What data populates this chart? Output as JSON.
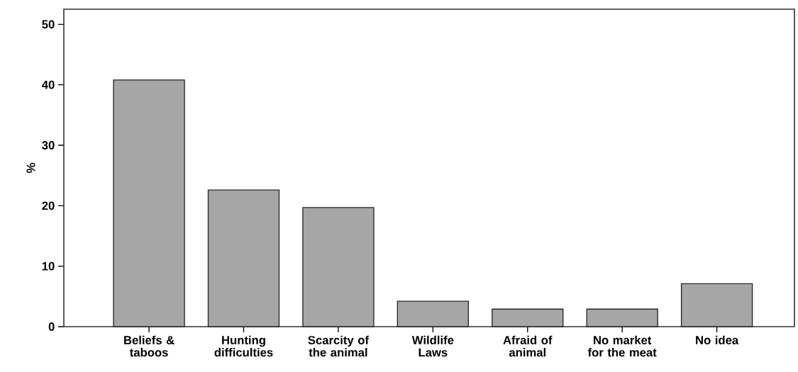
{
  "chart_data": {
    "type": "bar",
    "ylabel": "%",
    "categories": [
      "Beliefs & taboos",
      "Hunting difficulties",
      "Scarcity of the animal",
      "Wildlife Laws",
      "Afraid of animal",
      "No market for the meat",
      "No idea"
    ],
    "values": [
      40.8,
      22.6,
      19.7,
      4.2,
      2.9,
      2.9,
      7.1
    ],
    "color": "#a6a6a6",
    "ylim": [
      0,
      52.5
    ],
    "yticks": [
      0,
      10,
      20,
      30,
      40,
      50
    ],
    "grid": false
  }
}
